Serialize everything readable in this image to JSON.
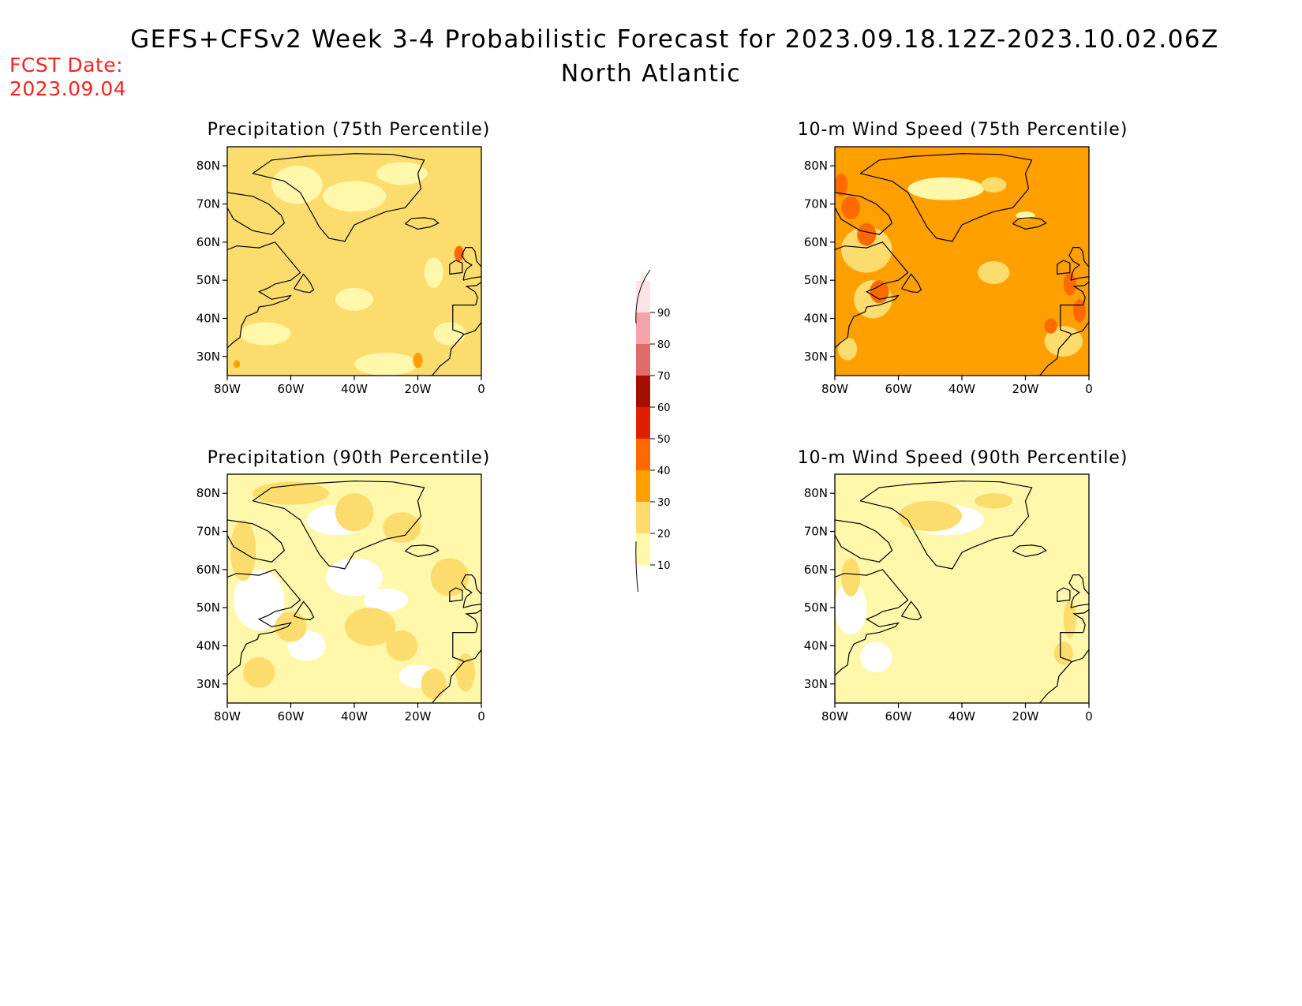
{
  "title": "GEFS+CFSv2 Week 3-4 Probabilistic Forecast for 2023.09.18.12Z-2023.10.02.06Z",
  "subtitle": "North Atlantic",
  "fcst_label": "FCST Date:",
  "fcst_date": "2023.09.04",
  "panels": [
    {
      "title": "Precipitation (75th Percentile)",
      "base_level": 20
    },
    {
      "title": "10-m Wind Speed (75th Percentile)",
      "base_level": 30
    },
    {
      "title": "Precipitation (90th Percentile)",
      "base_level": 10
    },
    {
      "title": "10-m Wind Speed (90th Percentile)",
      "base_level": 10
    }
  ],
  "axes": {
    "lat_ticks": [
      "80N",
      "70N",
      "60N",
      "50N",
      "40N",
      "30N"
    ],
    "lon_ticks": [
      "80W",
      "60W",
      "40W",
      "20W",
      "0"
    ]
  },
  "colorbar": {
    "labels": [
      "90",
      "80",
      "70",
      "60",
      "50",
      "40",
      "30",
      "20",
      "10"
    ],
    "colors": [
      "#fde4e6",
      "#f4a3a8",
      "#e06b6b",
      "#a50f00",
      "#e02000",
      "#ff6a00",
      "#ff9f00",
      "#fddc6e",
      "#fff7a9"
    ]
  }
}
